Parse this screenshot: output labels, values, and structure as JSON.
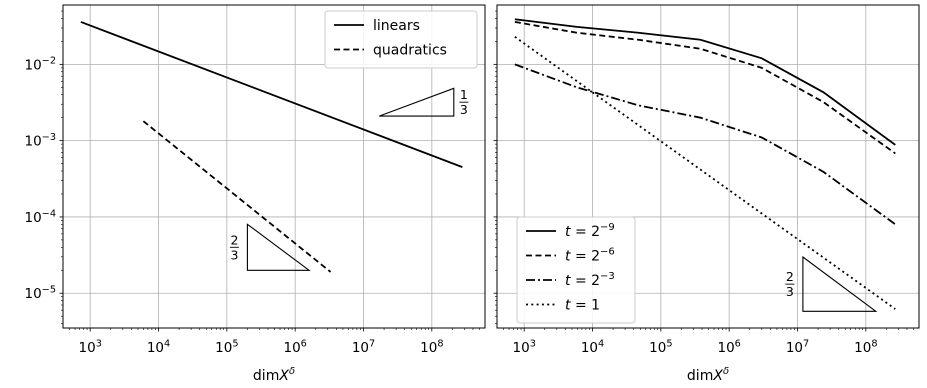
{
  "chart_data": [
    {
      "type": "line",
      "xscale": "log",
      "yscale": "log",
      "xlabel": "dimX^δ",
      "ylabel": "",
      "xlim": [
        400,
        600000000
      ],
      "ylim": [
        3.5e-06,
        0.06
      ],
      "grid": true,
      "legend": "top-right",
      "x_ticks": [
        1000,
        10000,
        100000,
        1000000,
        10000000,
        100000000
      ],
      "x_tick_labels": [
        {
          "base": "10",
          "exp": "3"
        },
        {
          "base": "10",
          "exp": "4"
        },
        {
          "base": "10",
          "exp": "5"
        },
        {
          "base": "10",
          "exp": "6"
        },
        {
          "base": "10",
          "exp": "7"
        },
        {
          "base": "10",
          "exp": "8"
        }
      ],
      "y_ticks": [
        1e-05,
        0.0001,
        0.001,
        0.01
      ],
      "y_tick_labels": [
        {
          "base": "10",
          "exp": "−5"
        },
        {
          "base": "10",
          "exp": "−4"
        },
        {
          "base": "10",
          "exp": "−3"
        },
        {
          "base": "10",
          "exp": "−2"
        }
      ],
      "series": [
        {
          "name": "linears",
          "style": "solid",
          "x": [
            730,
            280000000
          ],
          "y": [
            0.036,
            0.00045
          ]
        },
        {
          "name": "quadratics",
          "style": "dashed",
          "x": [
            6000,
            3300000
          ],
          "y": [
            0.0018,
            1.9e-05
          ]
        }
      ],
      "slope_annotations": [
        {
          "numerator": "1",
          "denominator": "3",
          "orientation": "up",
          "x_start": 17000000,
          "x_end": 210000000,
          "y_base": 0.0021
        },
        {
          "numerator": "2",
          "denominator": "3",
          "orientation": "down",
          "x_start": 200000,
          "x_end": 1600000,
          "y_base": 2e-05
        }
      ]
    },
    {
      "type": "line",
      "xscale": "log",
      "yscale": "log",
      "xlabel": "dimX^δ",
      "ylabel": "",
      "xlim": [
        400,
        600000000
      ],
      "ylim": [
        3.5e-06,
        0.06
      ],
      "grid": true,
      "legend": "bottom-left",
      "x_ticks": [
        1000,
        10000,
        100000,
        1000000,
        10000000,
        100000000
      ],
      "x_tick_labels": [
        {
          "base": "10",
          "exp": "3"
        },
        {
          "base": "10",
          "exp": "4"
        },
        {
          "base": "10",
          "exp": "5"
        },
        {
          "base": "10",
          "exp": "6"
        },
        {
          "base": "10",
          "exp": "7"
        },
        {
          "base": "10",
          "exp": "8"
        }
      ],
      "y_ticks": [
        1e-05,
        0.0001,
        0.001,
        0.01
      ],
      "y_tick_labels": [],
      "series": [
        {
          "name": "t = 2^−9",
          "legend_base": "2",
          "legend_exp": "−9",
          "style": "solid",
          "x": [
            730,
            5900,
            47000,
            380000,
            3000000,
            24000000,
            270000000
          ],
          "y": [
            0.039,
            0.031,
            0.026,
            0.021,
            0.012,
            0.0043,
            0.00088
          ]
        },
        {
          "name": "t = 2^−6",
          "legend_base": "2",
          "legend_exp": "−6",
          "style": "dashed",
          "x": [
            730,
            5900,
            47000,
            380000,
            3000000,
            24000000,
            270000000
          ],
          "y": [
            0.036,
            0.026,
            0.021,
            0.016,
            0.009,
            0.0032,
            0.00068
          ]
        },
        {
          "name": "t = 2^−3",
          "legend_base": "2",
          "legend_exp": "−3",
          "style": "dashdot",
          "x": [
            730,
            5900,
            47000,
            380000,
            3000000,
            24000000,
            270000000
          ],
          "y": [
            0.01,
            0.005,
            0.0029,
            0.002,
            0.0011,
            0.00039,
            8e-05
          ]
        },
        {
          "name": "t = 1",
          "legend_base": "1",
          "legend_exp": "",
          "style": "dotted",
          "x": [
            730,
            270000000
          ],
          "y": [
            0.023,
            6.2e-06
          ]
        }
      ],
      "slope_annotations": [
        {
          "numerator": "2",
          "denominator": "3",
          "orientation": "down",
          "x_start": 12000000,
          "x_end": 140000000,
          "y_base": 5.8e-06
        }
      ]
    }
  ]
}
